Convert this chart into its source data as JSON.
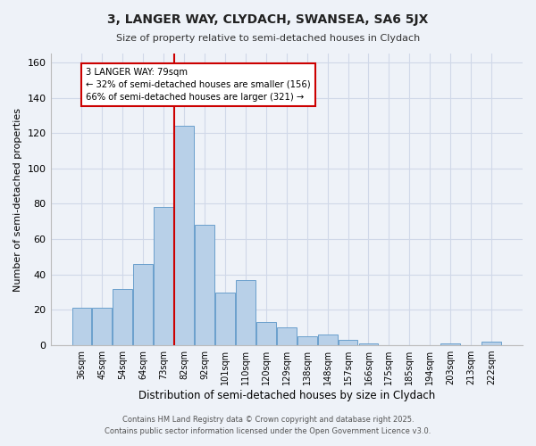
{
  "title": "3, LANGER WAY, CLYDACH, SWANSEA, SA6 5JX",
  "subtitle": "Size of property relative to semi-detached houses in Clydach",
  "xlabel": "Distribution of semi-detached houses by size in Clydach",
  "ylabel": "Number of semi-detached properties",
  "categories": [
    "36sqm",
    "45sqm",
    "54sqm",
    "64sqm",
    "73sqm",
    "82sqm",
    "92sqm",
    "101sqm",
    "110sqm",
    "120sqm",
    "129sqm",
    "138sqm",
    "148sqm",
    "157sqm",
    "166sqm",
    "175sqm",
    "185sqm",
    "194sqm",
    "203sqm",
    "213sqm",
    "222sqm"
  ],
  "values": [
    21,
    21,
    32,
    46,
    78,
    124,
    68,
    30,
    37,
    13,
    10,
    5,
    6,
    3,
    1,
    0,
    0,
    0,
    1,
    0,
    2
  ],
  "bar_color": "#b8d0e8",
  "bar_edge_color": "#6aa0cc",
  "background_color": "#eef2f8",
  "grid_color": "#d0d8e8",
  "vline_x_idx": 5,
  "vline_color": "#cc0000",
  "annotation_title": "3 LANGER WAY: 79sqm",
  "annotation_line1": "← 32% of semi-detached houses are smaller (156)",
  "annotation_line2": "66% of semi-detached houses are larger (321) →",
  "annotation_box_color": "#ffffff",
  "annotation_box_edge": "#cc0000",
  "ylim": [
    0,
    165
  ],
  "yticks": [
    0,
    20,
    40,
    60,
    80,
    100,
    120,
    140,
    160
  ],
  "footer1": "Contains HM Land Registry data © Crown copyright and database right 2025.",
  "footer2": "Contains public sector information licensed under the Open Government Licence v3.0."
}
